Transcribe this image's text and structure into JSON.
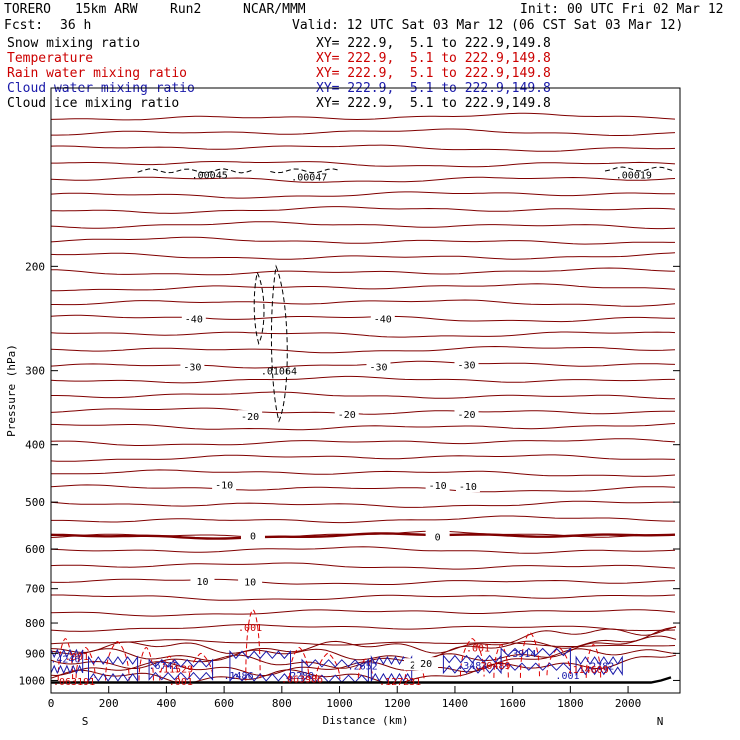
{
  "header": {
    "model": "TORERO",
    "resolution": "15km ARW",
    "run": "Run2",
    "org": "NCAR/MMM",
    "init": "Init: 00 UTC Fri 02 Mar 12",
    "fcst_label": "Fcst:",
    "fcst_value": "36 h",
    "valid": "Valid: 12 UTC Sat 03 Mar 12 (06 CST Sat 03 Mar 12)"
  },
  "legend": [
    {
      "name": "Snow mixing ratio",
      "xy": "XY= 222.9,  5.1 to 222.9,149.8",
      "color": "#000000"
    },
    {
      "name": "Temperature",
      "xy": "XY= 222.9,  5.1 to 222.9,149.8",
      "color": "#cc0000"
    },
    {
      "name": "Rain water mixing ratio",
      "xy": "XY= 222.9,  5.1 to 222.9,149.8",
      "color": "#cc0000"
    },
    {
      "name": "Cloud water mixing ratio",
      "xy": "XY= 222.9,  5.1 to 222.9,149.8",
      "color": "#1a1aaa"
    },
    {
      "name": "Cloud ice mixing ratio",
      "xy": "XY= 222.9,  5.1 to 222.9,149.8",
      "color": "#000000"
    }
  ],
  "chart_data": {
    "type": "cross-section contour",
    "xlabel": "Distance (km)",
    "ylabel": "Pressure (hPa)",
    "xlim": [
      0,
      2180
    ],
    "ylim": [
      1050,
      100
    ],
    "x_ticks": [
      0,
      200,
      400,
      600,
      800,
      1000,
      1200,
      1400,
      1600,
      1800,
      2000
    ],
    "y_ticks": [
      200,
      300,
      400,
      500,
      600,
      700,
      800,
      900,
      1000
    ],
    "endpoint_labels": {
      "left": "S",
      "right": "N"
    },
    "temperature_isotherm_labels": [
      {
        "x": 495,
        "p": 245,
        "text": "-40"
      },
      {
        "x": 1150,
        "p": 245,
        "text": "-40"
      },
      {
        "x": 490,
        "p": 295,
        "text": "-30"
      },
      {
        "x": 1135,
        "p": 295,
        "text": "-30"
      },
      {
        "x": 1440,
        "p": 293,
        "text": "-30"
      },
      {
        "x": 690,
        "p": 358,
        "text": "-20"
      },
      {
        "x": 1025,
        "p": 355,
        "text": "-20"
      },
      {
        "x": 1440,
        "p": 355,
        "text": "-20"
      },
      {
        "x": 600,
        "p": 467,
        "text": "-10"
      },
      {
        "x": 1340,
        "p": 468,
        "text": "-10"
      },
      {
        "x": 1445,
        "p": 470,
        "text": "-10"
      },
      {
        "x": 700,
        "p": 569,
        "text": "0"
      },
      {
        "x": 1340,
        "p": 571,
        "text": "0"
      },
      {
        "x": 525,
        "p": 680,
        "text": "10"
      },
      {
        "x": 690,
        "p": 681,
        "text": "10"
      },
      {
        "x": 1265,
        "p": 939,
        "text": "20"
      },
      {
        "x": 1300,
        "p": 935,
        "text": "20"
      }
    ],
    "field_labels": [
      {
        "x": 550,
        "p": 140,
        "text": ".00045",
        "series": "snow"
      },
      {
        "x": 895,
        "p": 141,
        "text": ".00047",
        "series": "snow"
      },
      {
        "x": 2020,
        "p": 140,
        "text": ".00019",
        "series": "snow"
      },
      {
        "x": 790,
        "p": 300,
        "text": ".01064",
        "series": "ice"
      },
      {
        "x": 690,
        "p": 813,
        "text": ".001",
        "series": "rain"
      },
      {
        "x": 90,
        "p": 910,
        "text": ".001",
        "series": "rain"
      },
      {
        "x": 1480,
        "p": 879,
        "text": ".001",
        "series": "rain"
      },
      {
        "x": 1790,
        "p": 980,
        "text": ".001",
        "series": "cloud"
      },
      {
        "x": 450,
        "p": 1003,
        "text": ".001",
        "series": "rain"
      },
      {
        "x": 50,
        "p": 918,
        "text": ".4246",
        "series": "cloud"
      },
      {
        "x": 390,
        "p": 941,
        "text": ".6742",
        "series": "cloud"
      },
      {
        "x": 650,
        "p": 980,
        "text": ".1486",
        "series": "cloud"
      },
      {
        "x": 860,
        "p": 980,
        "text": ".2289",
        "series": "cloud"
      },
      {
        "x": 1080,
        "p": 943,
        "text": ".2652",
        "series": "cloud"
      },
      {
        "x": 1460,
        "p": 941,
        "text": ".3483",
        "series": "cloud"
      },
      {
        "x": 1630,
        "p": 898,
        "text": ".3914",
        "series": "cloud"
      },
      {
        "x": 1900,
        "p": 943,
        "text": ".2782",
        "series": "cloud"
      },
      {
        "x": 430,
        "p": 955,
        "text": ".11529",
        "series": "rain"
      },
      {
        "x": 1530,
        "p": 941,
        "text": ".20489",
        "series": "rain"
      },
      {
        "x": 1860,
        "p": 956,
        "text": ".114609",
        "series": "rain"
      },
      {
        "x": 80,
        "p": 1002,
        "text": ".063191",
        "series": "rain"
      },
      {
        "x": 870,
        "p": 992,
        "text": ".063986",
        "series": "rain"
      },
      {
        "x": 1210,
        "p": 1002,
        "text": ".127231",
        "series": "rain"
      }
    ]
  }
}
